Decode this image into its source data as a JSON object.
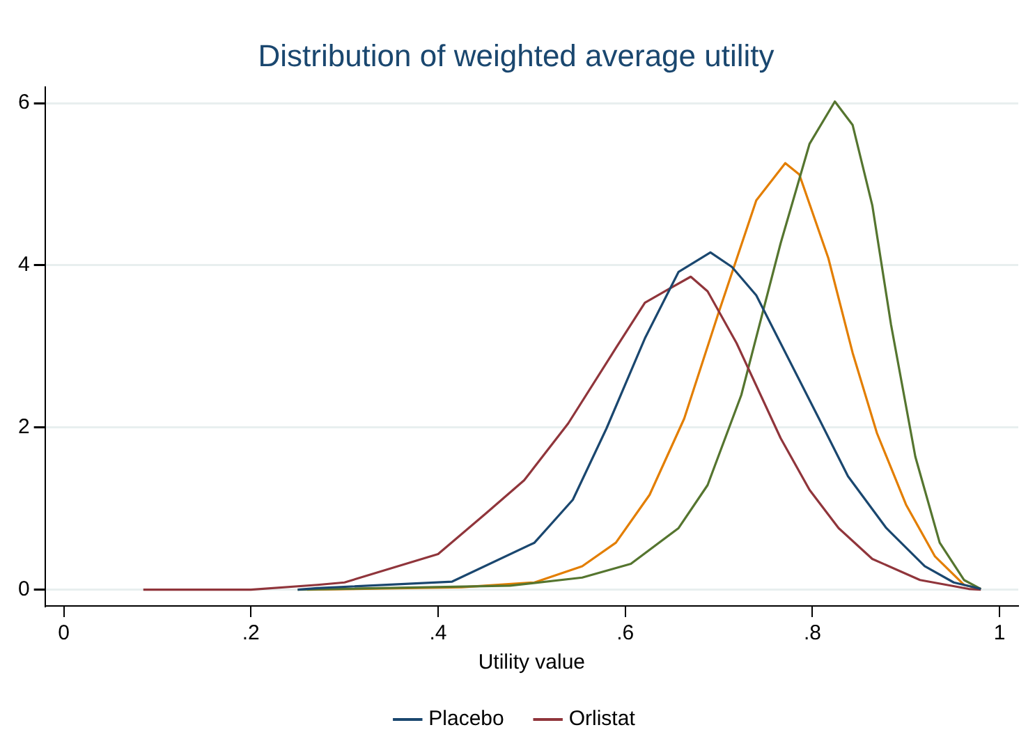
{
  "chart_data": {
    "type": "line",
    "title": "Distribution of weighted average utility",
    "xlabel": "Utility value",
    "xlim": [
      -0.02,
      1.02
    ],
    "xticks": [
      0,
      {
        "value": 0.2,
        "label": ".2"
      },
      {
        "value": 0.4,
        "label": ".4"
      },
      {
        "value": 0.6,
        "label": ".6"
      },
      {
        "value": 0.8,
        "label": ".8"
      },
      1
    ],
    "ylim": [
      -0.2,
      6.2
    ],
    "yticks": [
      0,
      2,
      4,
      6
    ],
    "grid": "y",
    "legend": "bottom",
    "marker": "none",
    "line_style": "solid",
    "series": [
      {
        "name": "Placebo",
        "color": "#1a476f",
        "x": [
          0.25,
          0.271,
          0.415,
          0.503,
          0.544,
          0.58,
          0.621,
          0.657,
          0.691,
          0.714,
          0.74,
          0.766,
          0.807,
          0.838,
          0.879,
          0.92,
          0.951,
          0.98
        ],
        "values": [
          0,
          0.02,
          0.1,
          0.58,
          1.11,
          1.99,
          3.1,
          3.92,
          4.16,
          3.98,
          3.63,
          3.04,
          2.11,
          1.4,
          0.76,
          0.29,
          0.09,
          0.01
        ]
      },
      {
        "name": "Orlistat",
        "color": "#90353b",
        "x": [
          0.085,
          0.2,
          0.271,
          0.3,
          0.4,
          0.451,
          0.492,
          0.539,
          0.59,
          0.621,
          0.647,
          0.67,
          0.688,
          0.719,
          0.766,
          0.797,
          0.828,
          0.864,
          0.915,
          0.967,
          0.98
        ],
        "values": [
          0,
          0,
          0.06,
          0.09,
          0.44,
          0.94,
          1.35,
          2.05,
          2.98,
          3.54,
          3.71,
          3.86,
          3.68,
          3.04,
          1.87,
          1.23,
          0.76,
          0.38,
          0.12,
          0.01,
          0
        ]
      },
      {
        "color": "#55752f",
        "x": [
          0.25,
          0.477,
          0.554,
          0.606,
          0.657,
          0.688,
          0.724,
          0.766,
          0.797,
          0.824,
          0.843,
          0.864,
          0.884,
          0.91,
          0.936,
          0.962,
          0.98
        ],
        "values": [
          0,
          0.05,
          0.15,
          0.32,
          0.76,
          1.29,
          2.4,
          4.27,
          5.5,
          6.02,
          5.73,
          4.74,
          3.27,
          1.64,
          0.58,
          0.12,
          0.01
        ]
      },
      {
        "color": "#e37e00",
        "x": [
          0.26,
          0.425,
          0.503,
          0.554,
          0.59,
          0.626,
          0.663,
          0.699,
          0.74,
          0.771,
          0.786,
          0.817,
          0.843,
          0.869,
          0.9,
          0.931,
          0.962,
          0.98
        ],
        "values": [
          0,
          0.03,
          0.09,
          0.29,
          0.58,
          1.17,
          2.11,
          3.39,
          4.8,
          5.26,
          5.12,
          4.09,
          2.92,
          1.93,
          1.05,
          0.41,
          0.06,
          0.01
        ]
      }
    ]
  }
}
